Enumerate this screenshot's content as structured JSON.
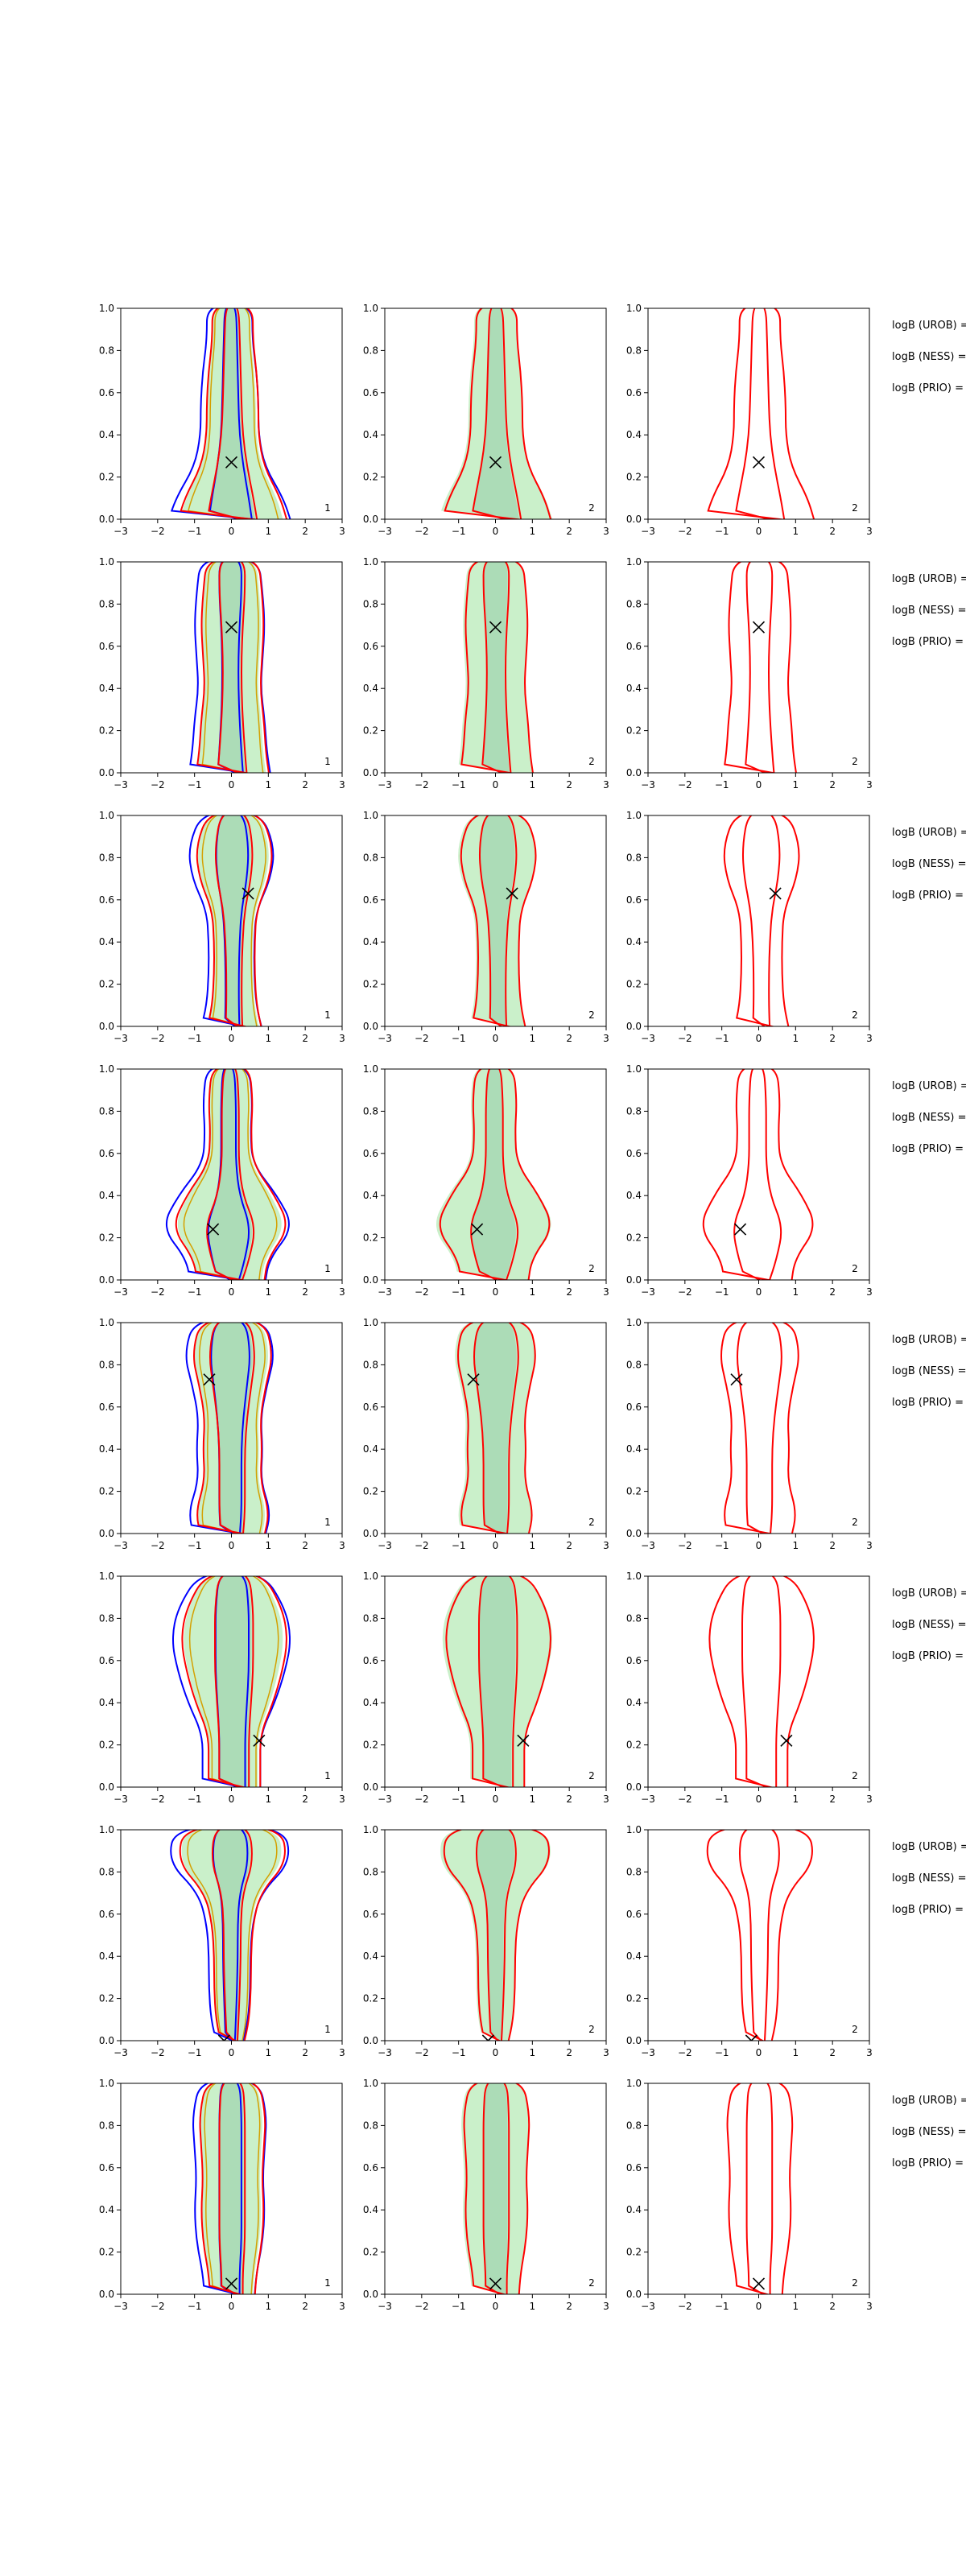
{
  "figure": {
    "description_rows": 8,
    "description_cols": 3
  },
  "colors": {
    "shade_fill": "#9fe39f",
    "shade_dark": "#7fbf9a",
    "uroB": "#0000ff",
    "ness": "#ff0000",
    "prior_inner": "#d4a000",
    "frame": "#000000"
  },
  "chart_data": {
    "type": "contour",
    "xlim": [
      -3,
      3
    ],
    "ylim": [
      0,
      1
    ],
    "xticks": [
      "−3",
      "−2",
      "−1",
      "0",
      "1",
      "2",
      "3"
    ],
    "yticks": [
      "0.0",
      "0.2",
      "0.4",
      "0.6",
      "0.8",
      "1.0"
    ],
    "panel_labels": [
      "1",
      "2",
      "2"
    ],
    "legend_lines": [
      "logB (UROB) =",
      "logB (NESS) =",
      "logB (PRIO) ="
    ],
    "rows": [
      {
        "marker": [
          0.0,
          0.27
        ]
      },
      {
        "marker": [
          0.0,
          0.69
        ]
      },
      {
        "marker": [
          0.45,
          0.63
        ]
      },
      {
        "marker": [
          -0.5,
          0.24
        ]
      },
      {
        "marker": [
          -0.6,
          0.73
        ]
      },
      {
        "marker": [
          0.75,
          0.22
        ]
      },
      {
        "marker": [
          -0.2,
          0.0
        ]
      },
      {
        "marker": [
          0.0,
          0.05
        ]
      }
    ]
  }
}
